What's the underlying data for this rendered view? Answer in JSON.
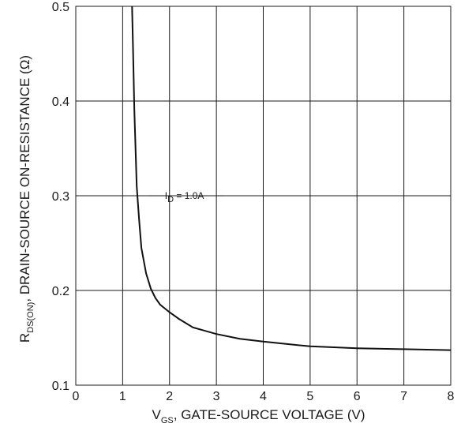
{
  "chart_data": {
    "type": "line",
    "xlabel_main": "V",
    "xlabel_sub": "GS",
    "xlabel_rest": ", GATE-SOURCE VOLTAGE (V)",
    "ylabel_main": "R",
    "ylabel_sub": "DS(ON)",
    "ylabel_rest": ", DRAIN-SOURCE ON-RESISTANCE (Ω)",
    "xlim": [
      0,
      8
    ],
    "ylim": [
      0.1,
      0.5
    ],
    "x_ticks": [
      "0",
      "1",
      "2",
      "3",
      "4",
      "5",
      "6",
      "7",
      "8"
    ],
    "y_ticks": [
      "0.1",
      "0.2",
      "0.3",
      "0.4",
      "0.5"
    ],
    "grid": true,
    "annotation": {
      "main": "I",
      "sub": "D",
      "rest": " = 1.0A",
      "x": 2.0,
      "y": 0.3
    },
    "series": [
      {
        "x": [
          1.2,
          1.22,
          1.25,
          1.3,
          1.35,
          1.4,
          1.5,
          1.6,
          1.7,
          1.8,
          2.0,
          2.2,
          2.5,
          3.0,
          3.5,
          4.0,
          5.0,
          6.0,
          7.0,
          8.0
        ],
        "y": [
          0.5,
          0.46,
          0.39,
          0.31,
          0.275,
          0.245,
          0.218,
          0.202,
          0.192,
          0.185,
          0.177,
          0.17,
          0.161,
          0.154,
          0.149,
          0.146,
          0.141,
          0.139,
          0.138,
          0.137
        ]
      }
    ]
  }
}
